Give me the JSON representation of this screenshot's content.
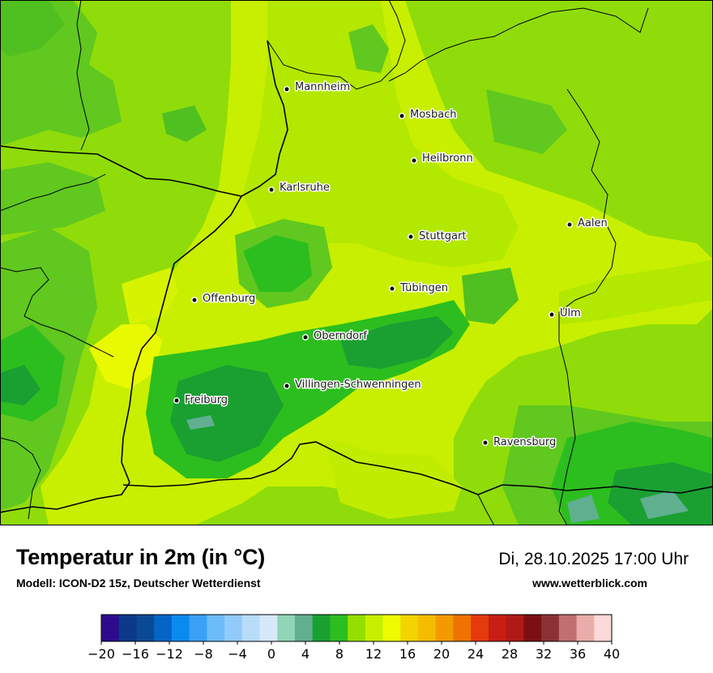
{
  "title": "Temperatur in 2m (in °C)",
  "subtitle": "Modell: ICON-D2 15z, Deutscher Wetterdienst",
  "datetime": "Di, 28.10.2025 17:00 Uhr",
  "website": "www.wetterblick.com",
  "cities": [
    {
      "name": "Mannheim"
    },
    {
      "name": "Mosbach"
    },
    {
      "name": "Heilbronn"
    },
    {
      "name": "Karlsruhe"
    },
    {
      "name": "Aalen"
    },
    {
      "name": "Stuttgart"
    },
    {
      "name": "Tübingen"
    },
    {
      "name": "Offenburg"
    },
    {
      "name": "Ulm"
    },
    {
      "name": "Oberndorf"
    },
    {
      "name": "Villingen-Schwenningen"
    },
    {
      "name": "Freiburg"
    },
    {
      "name": "Ravensburg"
    }
  ],
  "legend": {
    "min": -20,
    "max": 40,
    "step": 2,
    "tick_labels": [
      "−20",
      "−16",
      "−12",
      "−8",
      "−4",
      "0",
      "4",
      "8",
      "12",
      "16",
      "20",
      "24",
      "28",
      "32",
      "36",
      "40"
    ],
    "colors": [
      "#2e0a8c",
      "#0b3a8a",
      "#0a4a94",
      "#0565c6",
      "#0a8af0",
      "#3aa0f8",
      "#6cbcfa",
      "#92cbfb",
      "#b9dcfb",
      "#d6e9fc",
      "#8fd6b6",
      "#60b090",
      "#19a031",
      "#2cbe1e",
      "#94de00",
      "#c8ef00",
      "#eefc00",
      "#f2d500",
      "#f5bd00",
      "#f39a00",
      "#ee7300",
      "#e43a0e",
      "#c81e14",
      "#b01a16",
      "#7c0f12",
      "#8c3235",
      "#c07070",
      "#eaacaa",
      "#fdd9d9"
    ]
  }
}
